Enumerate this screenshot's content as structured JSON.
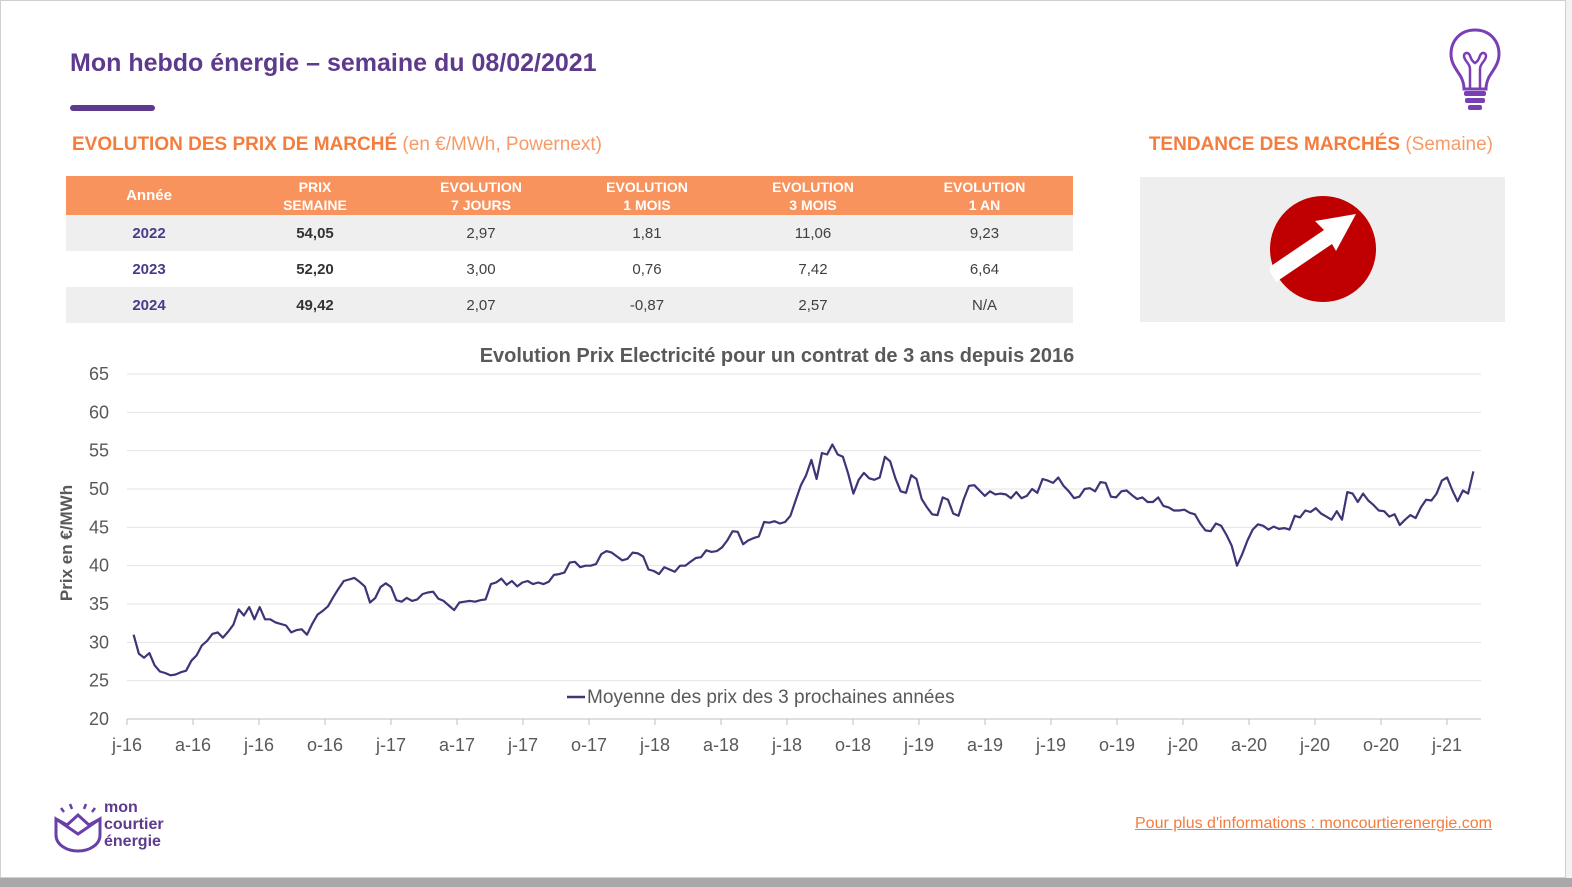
{
  "header": {
    "title": "Mon hebdo énergie – semaine du 08/02/2021"
  },
  "market_section": {
    "title_bold": "EVOLUTION DES PRIX DE MARCHÉ",
    "title_light": " (en €/MWh, Powernext)"
  },
  "trend_section": {
    "title_bold": "TENDANCE DES MARCHÉS",
    "title_light": " (Semaine)",
    "direction": "up",
    "icon": "arrow-up-right-icon",
    "color": "#c00000"
  },
  "table": {
    "headers": [
      [
        "Année"
      ],
      [
        "PRIX",
        "SEMAINE"
      ],
      [
        "EVOLUTION",
        "7 JOURS"
      ],
      [
        "EVOLUTION",
        "1 MOIS"
      ],
      [
        "EVOLUTION",
        "3 MOIS"
      ],
      [
        "EVOLUTION",
        "1 AN"
      ]
    ],
    "rows": [
      {
        "year": "2022",
        "price": "54,05",
        "d7": "2,97",
        "m1": "1,81",
        "m3": "11,06",
        "y1": "9,23"
      },
      {
        "year": "2023",
        "price": "52,20",
        "d7": "3,00",
        "m1": "0,76",
        "m3": "7,42",
        "y1": "6,64"
      },
      {
        "year": "2024",
        "price": "49,42",
        "d7": "2,07",
        "m1": "-0,87",
        "m3": "2,57",
        "y1": "N/A"
      }
    ]
  },
  "chart_data": {
    "type": "line",
    "title": "Evolution Prix Electricité pour un contrat de 3 ans depuis 2016",
    "ylabel": "Prix en €/MWh",
    "ylim": [
      20,
      65
    ],
    "yticks": [
      20,
      25,
      30,
      35,
      40,
      45,
      50,
      55,
      60,
      65
    ],
    "xticks": [
      "j-16",
      "a-16",
      "j-16",
      "o-16",
      "j-17",
      "a-17",
      "j-17",
      "o-17",
      "j-18",
      "a-18",
      "j-18",
      "o-18",
      "j-19",
      "a-19",
      "j-19",
      "o-19",
      "j-20",
      "a-20",
      "j-20",
      "o-20",
      "j-21"
    ],
    "grid": true,
    "legend": "bottom",
    "color": "#3d3576",
    "series": [
      {
        "name": "Moyenne des prix des 3 prochaines années",
        "x_start": 0.1,
        "x_end": 20.4,
        "values": [
          31,
          28.5,
          28,
          28.6,
          27,
          26.2,
          26,
          25.7,
          25.8,
          26.1,
          26.3,
          27.6,
          28.3,
          29.6,
          30.2,
          31.1,
          31.3,
          30.6,
          31.4,
          32.3,
          34.3,
          33.5,
          34.6,
          33,
          34.6,
          33,
          33,
          32.6,
          32.4,
          32.2,
          31.3,
          31.6,
          31.7,
          31,
          32.4,
          33.6,
          34.1,
          34.7,
          35.9,
          37,
          38,
          38.2,
          38.4,
          37.9,
          37.3,
          35.2,
          35.8,
          37.2,
          37.7,
          37.2,
          35.5,
          35.3,
          35.8,
          35.4,
          35.6,
          36.3,
          36.5,
          36.6,
          35.7,
          35.4,
          34.8,
          34.2,
          35.2,
          35.3,
          35.4,
          35.3,
          35.5,
          35.6,
          37.6,
          37.8,
          38.3,
          37.5,
          38,
          37.3,
          37.8,
          38,
          37.6,
          37.8,
          37.6,
          37.9,
          38.8,
          38.9,
          39.1,
          40.4,
          40.5,
          39.8,
          40,
          40,
          40.2,
          41.5,
          41.9,
          41.7,
          41.2,
          40.7,
          40.9,
          41.7,
          41.6,
          41.2,
          39.5,
          39.3,
          38.9,
          39.8,
          39.5,
          39.2,
          40,
          40,
          40.5,
          41,
          41.1,
          42,
          41.8,
          41.9,
          42.4,
          43.3,
          44.5,
          44.4,
          42.8,
          43.3,
          43.6,
          43.8,
          45.7,
          45.6,
          45.8,
          45.5,
          45.7,
          46.5,
          48.5,
          50.5,
          51.8,
          53.8,
          51.3,
          54.7,
          54.5,
          55.8,
          54.5,
          54.2,
          52,
          49.4,
          51.2,
          52.1,
          51.4,
          51.2,
          51.5,
          54.2,
          53.6,
          51.4,
          49.7,
          49.5,
          51.8,
          51.3,
          48.7,
          47.6,
          46.7,
          46.6,
          48.9,
          48.6,
          46.8,
          46.5,
          48.7,
          50.4,
          50.5,
          49.8,
          49.1,
          49.7,
          49.3,
          49.4,
          49.3,
          48.8,
          49.6,
          48.8,
          49.1,
          50,
          49.5,
          51.3,
          51.1,
          50.8,
          51.5,
          50.4,
          49.7,
          48.8,
          49,
          50,
          50.1,
          49.7,
          50.9,
          50.8,
          49,
          48.9,
          49.7,
          49.8,
          49.2,
          48.7,
          48.9,
          48.3,
          48.3,
          48.9,
          47.8,
          47.6,
          47.2,
          47.2,
          47.3,
          46.9,
          46.7,
          45.5,
          44.6,
          44.5,
          45.5,
          45.2,
          44,
          42.6,
          40,
          41.5,
          43.3,
          44.7,
          45.4,
          45.2,
          44.7,
          45.1,
          44.8,
          44.9,
          44.7,
          46.5,
          46.3,
          47.2,
          47,
          47.5,
          46.8,
          46.4,
          46,
          47.1,
          46,
          49.6,
          49.4,
          48.3,
          49.4,
          48.5,
          47.9,
          47.2,
          47.1,
          46.4,
          46.7,
          45.3,
          46,
          46.6,
          46.2,
          47.6,
          48.6,
          48.5,
          49.4,
          51.1,
          51.5,
          49.8,
          48.4,
          49.8,
          49.4,
          52.3
        ]
      }
    ]
  },
  "footer": {
    "logo_line1": "mon",
    "logo_line2": "courtier",
    "logo_line3": "énergie",
    "link_text": "Pour plus d'informations : moncourtierenergie.com"
  }
}
